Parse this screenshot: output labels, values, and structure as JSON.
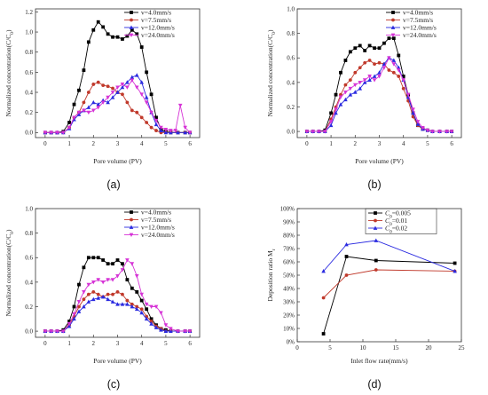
{
  "chart_data": [
    {
      "type": "line",
      "panel_label": "(a)",
      "xlabel": "Pore volume (PV)",
      "ylabel": "Normalized concentration(C/C",
      "ylabel_sub": "0",
      "ylabel_close": ")",
      "xlim": [
        -0.4,
        6.4
      ],
      "ylim": [
        -0.05,
        1.23
      ],
      "xticks": [
        0,
        1,
        2,
        3,
        4,
        5,
        6
      ],
      "yticks": [
        0.0,
        0.2,
        0.4,
        0.6,
        0.8,
        1.0,
        1.2
      ],
      "ytick_labels": [
        "0.0",
        "0.2",
        "0.4",
        "0.6",
        "0.8",
        "1.0",
        "1.2"
      ],
      "legend_position": "top-right",
      "series": [
        {
          "name": "v=4.0mm/s",
          "color": "#000000",
          "marker": "square",
          "x": [
            0,
            0.25,
            0.5,
            0.75,
            1.0,
            1.2,
            1.4,
            1.6,
            1.8,
            2.0,
            2.2,
            2.4,
            2.6,
            2.8,
            3.0,
            3.2,
            3.4,
            3.6,
            3.8,
            4.0,
            4.2,
            4.4,
            4.6,
            4.8,
            5.0,
            5.2,
            5.5,
            5.8,
            6.0
          ],
          "y": [
            0,
            0,
            0,
            0.01,
            0.1,
            0.28,
            0.42,
            0.62,
            0.9,
            1.02,
            1.1,
            1.05,
            0.98,
            0.95,
            0.95,
            0.93,
            0.96,
            1.02,
            0.98,
            0.85,
            0.6,
            0.38,
            0.15,
            0.03,
            0.01,
            0,
            0,
            0,
            0
          ]
        },
        {
          "name": "v=7.5mm/s",
          "color": "#c0392b",
          "marker": "circle",
          "x": [
            0,
            0.25,
            0.5,
            0.75,
            1.0,
            1.2,
            1.4,
            1.6,
            1.8,
            2.0,
            2.2,
            2.4,
            2.6,
            2.8,
            3.0,
            3.2,
            3.4,
            3.6,
            3.8,
            4.0,
            4.2,
            4.4,
            4.6,
            4.8,
            5.0,
            5.2,
            5.5,
            5.8,
            6.0
          ],
          "y": [
            0,
            0,
            0,
            0,
            0.05,
            0.15,
            0.2,
            0.3,
            0.4,
            0.48,
            0.5,
            0.47,
            0.46,
            0.44,
            0.4,
            0.38,
            0.3,
            0.22,
            0.2,
            0.15,
            0.1,
            0.05,
            0.02,
            0,
            0,
            0,
            0,
            0,
            0
          ]
        },
        {
          "name": "v=12.0mm/s",
          "color": "#2a2ae0",
          "marker": "triangle",
          "x": [
            0,
            0.25,
            0.5,
            0.75,
            1.0,
            1.2,
            1.4,
            1.6,
            1.8,
            2.0,
            2.2,
            2.4,
            2.6,
            2.8,
            3.0,
            3.2,
            3.4,
            3.6,
            3.8,
            4.0,
            4.2,
            4.4,
            4.6,
            4.8,
            5.0,
            5.2,
            5.5,
            5.8,
            6.0
          ],
          "y": [
            0,
            0,
            0,
            0,
            0.04,
            0.13,
            0.18,
            0.22,
            0.25,
            0.3,
            0.28,
            0.32,
            0.3,
            0.35,
            0.4,
            0.45,
            0.5,
            0.55,
            0.57,
            0.5,
            0.35,
            0.2,
            0.08,
            0.02,
            0,
            0,
            0,
            0,
            0
          ]
        },
        {
          "name": "v=24.0mm/s",
          "color": "#d633d6",
          "marker": "triangle-down",
          "x": [
            0,
            0.25,
            0.5,
            0.75,
            1.0,
            1.2,
            1.4,
            1.6,
            1.8,
            2.0,
            2.2,
            2.4,
            2.6,
            2.8,
            3.0,
            3.2,
            3.4,
            3.6,
            3.8,
            4.0,
            4.2,
            4.4,
            4.6,
            4.8,
            5.0,
            5.2,
            5.4,
            5.6,
            5.8,
            6.0
          ],
          "y": [
            0,
            0,
            0,
            0,
            0.05,
            0.15,
            0.2,
            0.22,
            0.2,
            0.22,
            0.25,
            0.3,
            0.35,
            0.4,
            0.45,
            0.48,
            0.45,
            0.52,
            0.45,
            0.38,
            0.3,
            0.2,
            0.12,
            0.05,
            0.03,
            0.02,
            0.02,
            0.27,
            0.05,
            0
          ]
        }
      ]
    },
    {
      "type": "line",
      "panel_label": "(b)",
      "xlabel": "Pore volume (PV)",
      "ylabel": "Normalized concentration(C/C",
      "ylabel_sub": "0",
      "ylabel_close": ")",
      "xlim": [
        -0.4,
        6.4
      ],
      "ylim": [
        -0.05,
        1.0
      ],
      "xticks": [
        0,
        1,
        2,
        3,
        4,
        5,
        6
      ],
      "yticks": [
        0.0,
        0.2,
        0.4,
        0.6,
        0.8,
        1.0
      ],
      "ytick_labels": [
        "0.0",
        "0.2",
        "0.4",
        "0.6",
        "0.8",
        "1.0"
      ],
      "legend_position": "top-right",
      "series": [
        {
          "name": "v=4.0mm/s",
          "color": "#000000",
          "marker": "square",
          "x": [
            0,
            0.25,
            0.5,
            0.75,
            1.0,
            1.2,
            1.4,
            1.6,
            1.8,
            2.0,
            2.2,
            2.4,
            2.6,
            2.8,
            3.0,
            3.2,
            3.4,
            3.6,
            3.8,
            4.0,
            4.2,
            4.4,
            4.6,
            4.8,
            5.0,
            5.2,
            5.5,
            5.8,
            6.0
          ],
          "y": [
            0,
            0,
            0,
            0.01,
            0.15,
            0.3,
            0.48,
            0.58,
            0.65,
            0.68,
            0.7,
            0.66,
            0.7,
            0.68,
            0.68,
            0.72,
            0.76,
            0.76,
            0.62,
            0.45,
            0.3,
            0.15,
            0.05,
            0.02,
            0.01,
            0,
            0,
            0,
            0
          ]
        },
        {
          "name": "v=7.5mm/s",
          "color": "#c0392b",
          "marker": "circle",
          "x": [
            0,
            0.25,
            0.5,
            0.75,
            1.0,
            1.2,
            1.4,
            1.6,
            1.8,
            2.0,
            2.2,
            2.4,
            2.6,
            2.8,
            3.0,
            3.2,
            3.4,
            3.6,
            3.8,
            4.0,
            4.2,
            4.4,
            4.6,
            4.8,
            5.0,
            5.2,
            5.5,
            5.8,
            6.0
          ],
          "y": [
            0,
            0,
            0,
            0,
            0.1,
            0.2,
            0.3,
            0.38,
            0.42,
            0.48,
            0.52,
            0.56,
            0.58,
            0.55,
            0.56,
            0.55,
            0.5,
            0.48,
            0.45,
            0.35,
            0.25,
            0.12,
            0.05,
            0.02,
            0.01,
            0,
            0,
            0,
            0
          ]
        },
        {
          "name": "v=12.0mm/s",
          "color": "#2a2ae0",
          "marker": "triangle",
          "x": [
            0,
            0.25,
            0.5,
            0.75,
            1.0,
            1.2,
            1.4,
            1.6,
            1.8,
            2.0,
            2.2,
            2.4,
            2.6,
            2.8,
            3.0,
            3.2,
            3.4,
            3.6,
            3.8,
            4.0,
            4.2,
            4.4,
            4.6,
            4.8,
            5.0,
            5.2,
            5.5,
            5.8,
            6.0
          ],
          "y": [
            0,
            0,
            0,
            0,
            0.05,
            0.15,
            0.22,
            0.26,
            0.3,
            0.32,
            0.35,
            0.4,
            0.42,
            0.45,
            0.48,
            0.55,
            0.6,
            0.58,
            0.52,
            0.42,
            0.28,
            0.15,
            0.06,
            0.02,
            0.01,
            0,
            0,
            0,
            0
          ]
        },
        {
          "name": "v=24.0mm/s",
          "color": "#d633d6",
          "marker": "triangle-down",
          "x": [
            0,
            0.25,
            0.5,
            0.75,
            1.0,
            1.2,
            1.4,
            1.6,
            1.8,
            2.0,
            2.2,
            2.4,
            2.6,
            2.8,
            3.0,
            3.2,
            3.4,
            3.6,
            3.8,
            4.0,
            4.2,
            4.4,
            4.6,
            4.8,
            5.0,
            5.2,
            5.5,
            5.8,
            6.0
          ],
          "y": [
            0,
            0,
            0,
            0,
            0.08,
            0.18,
            0.28,
            0.32,
            0.35,
            0.38,
            0.4,
            0.42,
            0.45,
            0.42,
            0.45,
            0.52,
            0.6,
            0.55,
            0.5,
            0.42,
            0.3,
            0.18,
            0.08,
            0.03,
            0.01,
            0,
            0,
            0,
            0
          ]
        }
      ]
    },
    {
      "type": "line",
      "panel_label": "(c)",
      "xlabel": "Pore volume (PV)",
      "ylabel": "Normalized concentration(C/C",
      "ylabel_sub": "0",
      "ylabel_close": ")",
      "xlim": [
        -0.4,
        6.4
      ],
      "ylim": [
        -0.05,
        1.0
      ],
      "xticks": [
        0,
        1,
        2,
        3,
        4,
        5,
        6
      ],
      "yticks": [
        0.0,
        0.2,
        0.4,
        0.6,
        0.8,
        1.0
      ],
      "ytick_labels": [
        "0.0",
        "0.2",
        "0.4",
        "0.6",
        "0.8",
        "1.0"
      ],
      "legend_position": "top-right",
      "series": [
        {
          "name": "v=4.0mm/s",
          "color": "#000000",
          "marker": "square",
          "x": [
            0,
            0.25,
            0.5,
            0.75,
            1.0,
            1.2,
            1.4,
            1.6,
            1.8,
            2.0,
            2.2,
            2.4,
            2.6,
            2.8,
            3.0,
            3.2,
            3.4,
            3.6,
            3.8,
            4.0,
            4.2,
            4.4,
            4.6,
            4.8,
            5.0,
            5.2,
            5.5,
            5.8,
            6.0
          ],
          "y": [
            0,
            0,
            0,
            0.01,
            0.08,
            0.2,
            0.38,
            0.52,
            0.6,
            0.6,
            0.6,
            0.58,
            0.55,
            0.55,
            0.58,
            0.55,
            0.42,
            0.35,
            0.32,
            0.25,
            0.18,
            0.1,
            0.05,
            0.02,
            0.01,
            0,
            0,
            0,
            0
          ]
        },
        {
          "name": "v=7.5mm/s",
          "color": "#c0392b",
          "marker": "circle",
          "x": [
            0,
            0.25,
            0.5,
            0.75,
            1.0,
            1.2,
            1.4,
            1.6,
            1.8,
            2.0,
            2.2,
            2.4,
            2.6,
            2.8,
            3.0,
            3.2,
            3.4,
            3.6,
            3.8,
            4.0,
            4.2,
            4.4,
            4.6,
            4.8,
            5.0,
            5.2,
            5.5,
            5.8,
            6.0
          ],
          "y": [
            0,
            0,
            0,
            0,
            0.05,
            0.12,
            0.2,
            0.26,
            0.3,
            0.32,
            0.3,
            0.28,
            0.3,
            0.3,
            0.32,
            0.3,
            0.25,
            0.22,
            0.2,
            0.18,
            0.12,
            0.08,
            0.04,
            0.02,
            0,
            0,
            0,
            0,
            0
          ]
        },
        {
          "name": "v=12.0mm/s",
          "color": "#2a2ae0",
          "marker": "triangle",
          "x": [
            0,
            0.25,
            0.5,
            0.75,
            1.0,
            1.2,
            1.4,
            1.6,
            1.8,
            2.0,
            2.2,
            2.4,
            2.6,
            2.8,
            3.0,
            3.2,
            3.4,
            3.6,
            3.8,
            4.0,
            4.2,
            4.4,
            4.6,
            4.8,
            5.0,
            5.2,
            5.5,
            5.8,
            6.0
          ],
          "y": [
            0,
            0,
            0,
            0,
            0.04,
            0.1,
            0.16,
            0.2,
            0.24,
            0.26,
            0.27,
            0.28,
            0.26,
            0.24,
            0.22,
            0.22,
            0.22,
            0.2,
            0.18,
            0.15,
            0.1,
            0.06,
            0.03,
            0.01,
            0,
            0,
            0,
            0,
            0
          ]
        },
        {
          "name": "v=24.0mm/s",
          "color": "#d633d6",
          "marker": "triangle-down",
          "x": [
            0,
            0.25,
            0.5,
            0.75,
            1.0,
            1.2,
            1.4,
            1.6,
            1.8,
            2.0,
            2.2,
            2.4,
            2.6,
            2.8,
            3.0,
            3.2,
            3.4,
            3.6,
            3.8,
            4.0,
            4.2,
            4.4,
            4.6,
            4.8,
            5.0,
            5.2,
            5.5,
            5.8,
            6.0
          ],
          "y": [
            0,
            0,
            0,
            0,
            0.06,
            0.14,
            0.24,
            0.32,
            0.38,
            0.4,
            0.42,
            0.4,
            0.42,
            0.42,
            0.45,
            0.5,
            0.58,
            0.55,
            0.45,
            0.3,
            0.22,
            0.2,
            0.2,
            0.15,
            0.05,
            0.02,
            0,
            0,
            0
          ]
        }
      ]
    },
    {
      "type": "line",
      "panel_label": "(d)",
      "xlabel": "Inlet flow rate(mm/s)",
      "ylabel": "Deposition ratio M",
      "ylabel_sub": "r",
      "ylabel_close": "",
      "xlim": [
        0,
        25
      ],
      "ylim": [
        0,
        100
      ],
      "xticks": [
        0,
        5,
        10,
        15,
        20,
        25
      ],
      "yticks": [
        0,
        10,
        20,
        30,
        40,
        50,
        60,
        70,
        80,
        90,
        100
      ],
      "ytick_labels": [
        "0%",
        "10%",
        "20%",
        "30%",
        "40%",
        "50%",
        "60%",
        "70%",
        "80%",
        "90%",
        "100%"
      ],
      "legend_position": "top-right",
      "series": [
        {
          "name": "C",
          "name_sub": "0",
          "name_rest": "=0.005",
          "color": "#000000",
          "marker": "square",
          "x": [
            4.0,
            7.5,
            12.0,
            24.0
          ],
          "y": [
            6,
            64,
            61,
            59
          ]
        },
        {
          "name": "C",
          "name_sub": "0",
          "name_rest": "=0.01",
          "color": "#c0392b",
          "marker": "circle",
          "x": [
            4.0,
            7.5,
            12.0,
            24.0
          ],
          "y": [
            33,
            50,
            54,
            53
          ]
        },
        {
          "name": "C",
          "name_sub": "0",
          "name_rest": "=0.02",
          "color": "#2a2ae0",
          "marker": "triangle",
          "x": [
            4.0,
            7.5,
            12.0,
            24.0
          ],
          "y": [
            53,
            73,
            76,
            53
          ]
        }
      ]
    }
  ]
}
